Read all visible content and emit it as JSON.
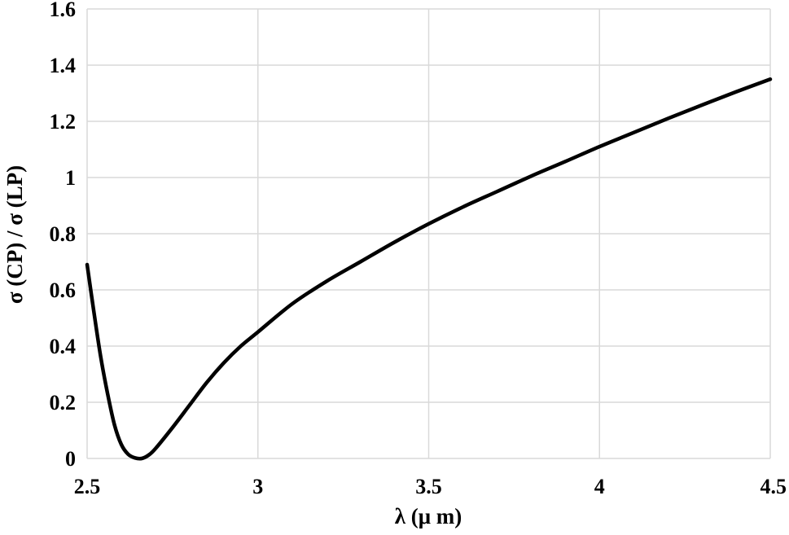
{
  "chart_data": {
    "type": "line",
    "xlabel": "λ (μ m)",
    "ylabel": "σ (CP)  /  σ (LP)",
    "xlim": [
      2.5,
      4.5
    ],
    "ylim": [
      0,
      1.6
    ],
    "xticks": [
      2.5,
      3,
      3.5,
      4,
      4.5
    ],
    "xtick_labels": [
      "2.5",
      "3",
      "3.5",
      "4",
      "4.5"
    ],
    "yticks": [
      0,
      0.2,
      0.4,
      0.6,
      0.8,
      1,
      1.2,
      1.4,
      1.6
    ],
    "ytick_labels": [
      "0",
      "0.2",
      "0.4",
      "0.6",
      "0.8",
      "1",
      "1.2",
      "1.4",
      "1.6"
    ],
    "grid": true,
    "legend": "none",
    "series": [
      {
        "color": "#000000",
        "x": [
          2.5,
          2.52,
          2.54,
          2.56,
          2.58,
          2.6,
          2.62,
          2.64,
          2.66,
          2.68,
          2.7,
          2.75,
          2.8,
          2.85,
          2.9,
          2.95,
          3.0,
          3.1,
          3.2,
          3.3,
          3.4,
          3.5,
          3.6,
          3.7,
          3.8,
          3.9,
          4.0,
          4.1,
          4.2,
          4.3,
          4.4,
          4.5
        ],
        "y": [
          0.69,
          0.52,
          0.36,
          0.23,
          0.12,
          0.05,
          0.015,
          0.002,
          0.0,
          0.012,
          0.035,
          0.11,
          0.19,
          0.27,
          0.34,
          0.4,
          0.45,
          0.55,
          0.63,
          0.7,
          0.77,
          0.835,
          0.895,
          0.95,
          1.005,
          1.057,
          1.11,
          1.16,
          1.21,
          1.258,
          1.305,
          1.35
        ]
      }
    ]
  }
}
